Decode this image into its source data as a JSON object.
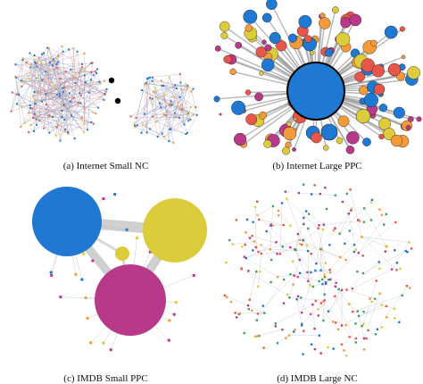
{
  "figure": {
    "panels": [
      {
        "id": "a",
        "caption": "(a)  Internet Small NC"
      },
      {
        "id": "b",
        "caption": "(b)  Internet Large PPC"
      },
      {
        "id": "c",
        "caption": "(c)  IMDB Small PPC"
      },
      {
        "id": "d",
        "caption": "(d)  IMDB Large NC"
      }
    ],
    "colors": {
      "blue": "#1f78d1",
      "yellow": "#dccc3c",
      "magenta": "#b8388a",
      "red": "#e8564a",
      "orange": "#f39a3a",
      "edge": "#9a9a9a",
      "dark_outline": "#000000"
    }
  }
}
